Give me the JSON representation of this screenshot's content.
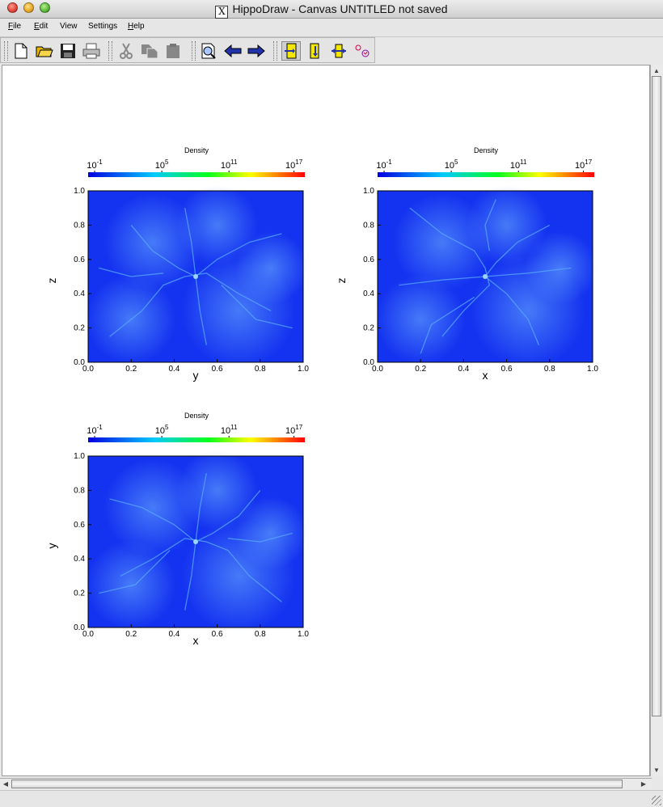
{
  "window": {
    "title": "HippoDraw - Canvas UNTITLED   not saved",
    "x_glyph": "X"
  },
  "menu": [
    {
      "label": "File",
      "key": "F",
      "rest": "ile"
    },
    {
      "label": "Edit",
      "key": "E",
      "rest": "dit"
    },
    {
      "label": "View",
      "key": "",
      "rest": "View"
    },
    {
      "label": "Settings",
      "key": "",
      "rest": "Settings"
    },
    {
      "label": "Help",
      "key": "H",
      "rest": "elp"
    }
  ],
  "toolbar": {
    "icons": [
      "new-document-icon",
      "open-folder-icon",
      "save-disk-icon",
      "print-icon",
      "cut-scissors-icon",
      "copy-icon",
      "paste-icon",
      "inspector-icon",
      "back-arrow-icon",
      "forward-arrow-icon",
      "select-mode-icon",
      "zoom-y-icon",
      "zoom-x-icon",
      "pick-point-icon"
    ],
    "pressed": "select-mode-icon",
    "colors": {
      "arrow": "#2233aa",
      "yellow": "#f5e800"
    }
  },
  "plots": [
    {
      "id": "yz",
      "colorbar_label": "Density",
      "colorbar_ticks": [
        {
          "base": "10",
          "exp": "-1"
        },
        {
          "base": "10",
          "exp": "5"
        },
        {
          "base": "10",
          "exp": "11"
        },
        {
          "base": "10",
          "exp": "17"
        }
      ],
      "xlabel": "y",
      "ylabel": "z",
      "xticks": [
        "0.0",
        "0.2",
        "0.4",
        "0.6",
        "0.8",
        "1.0"
      ],
      "yticks": [
        "0.0",
        "0.2",
        "0.4",
        "0.6",
        "0.8",
        "1.0"
      ]
    },
    {
      "id": "xz",
      "colorbar_label": "Density",
      "colorbar_ticks": [
        {
          "base": "10",
          "exp": "-1"
        },
        {
          "base": "10",
          "exp": "5"
        },
        {
          "base": "10",
          "exp": "11"
        },
        {
          "base": "10",
          "exp": "17"
        }
      ],
      "xlabel": "x",
      "ylabel": "z",
      "xticks": [
        "0.0",
        "0.2",
        "0.4",
        "0.6",
        "0.8",
        "1.0"
      ],
      "yticks": [
        "0.0",
        "0.2",
        "0.4",
        "0.6",
        "0.8",
        "1.0"
      ]
    },
    {
      "id": "xy",
      "colorbar_label": "Density",
      "colorbar_ticks": [
        {
          "base": "10",
          "exp": "-1"
        },
        {
          "base": "10",
          "exp": "5"
        },
        {
          "base": "10",
          "exp": "11"
        },
        {
          "base": "10",
          "exp": "17"
        }
      ],
      "xlabel": "x",
      "ylabel": "y",
      "xticks": [
        "0.0",
        "0.2",
        "0.4",
        "0.6",
        "0.8",
        "1.0"
      ],
      "yticks": [
        "0.0",
        "0.2",
        "0.4",
        "0.6",
        "0.8",
        "1.0"
      ]
    }
  ],
  "colors": {
    "plot_background": "#1433f0",
    "filament": "#5aa8ff"
  }
}
